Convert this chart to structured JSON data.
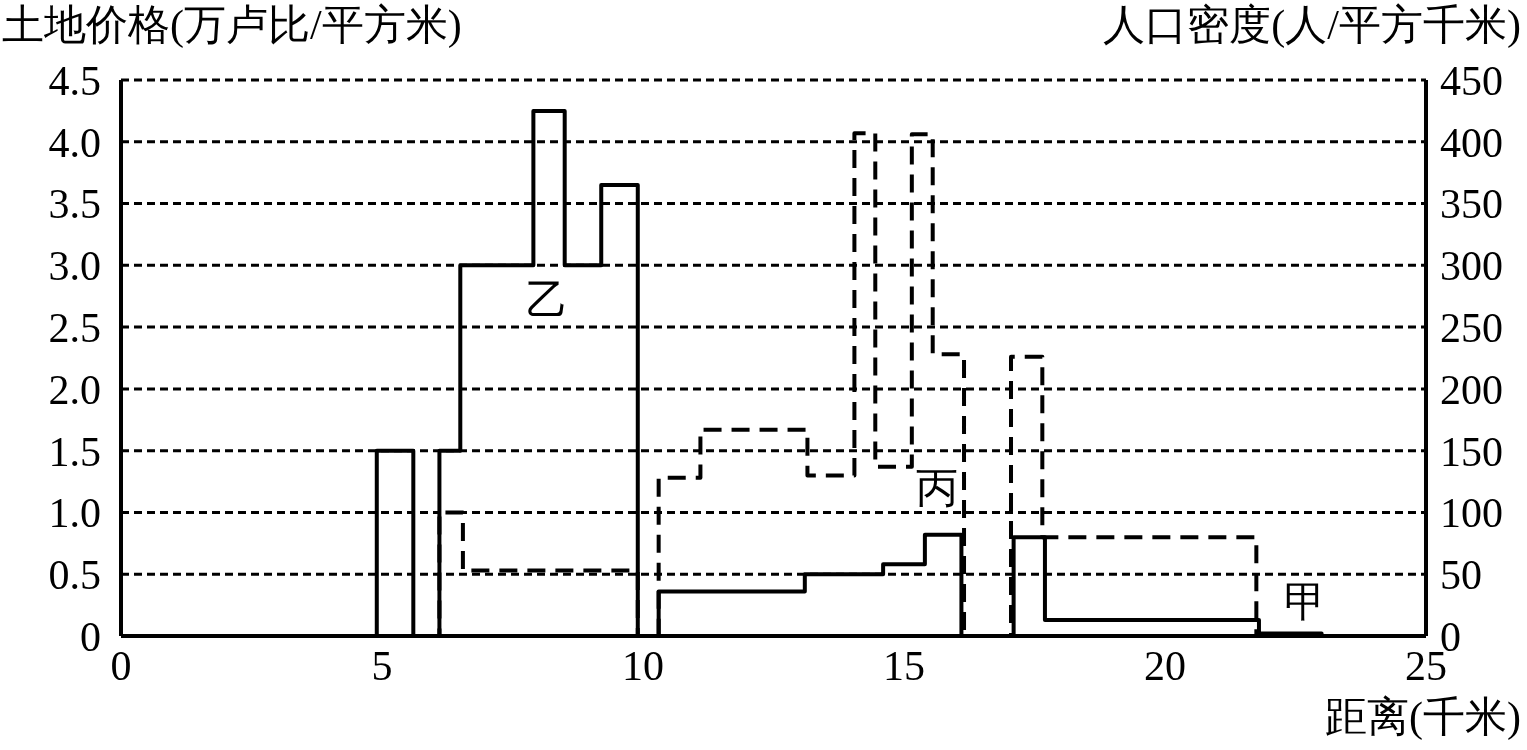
{
  "chart_data": {
    "type": "step",
    "xlabel": "距离(千米)",
    "ylabel": "土地价格(万卢比/平方米)",
    "y2label": "人口密度(人/平方千米)",
    "xlim": [
      0,
      25
    ],
    "xticks": [
      0,
      5,
      10,
      15,
      20,
      25
    ],
    "ylim": [
      0,
      4.5
    ],
    "yticks": [
      0,
      0.5,
      {
        "value": 1,
        "label": "1.0"
      },
      1.5,
      {
        "value": 2,
        "label": "2.0"
      },
      2.5,
      {
        "value": 3,
        "label": "3.0"
      },
      3.5,
      {
        "value": 4,
        "label": "4.0"
      },
      4.5
    ],
    "y2lim": [
      0,
      450
    ],
    "y2ticks": [
      0,
      50,
      100,
      150,
      200,
      250,
      300,
      350,
      400,
      450
    ],
    "grid": "y",
    "series": [
      {
        "color": "#000000",
        "line_style": "solid",
        "x": [
          0,
          4.9,
          5.6,
          6.1,
          6.5,
          7.9,
          8.5,
          9.2,
          9.9,
          10.3,
          13.1,
          14.6,
          15.4,
          16.1,
          17.1,
          17.7,
          21.8,
          23.0
        ],
        "values": [
          0,
          1.5,
          0,
          1.5,
          3.0,
          4.25,
          3.0,
          3.65,
          0,
          0.36,
          0.5,
          0.58,
          0.82,
          0,
          0.8,
          0.13,
          0.02,
          0
        ]
      },
      {
        "color": "#000000",
        "line_style": "dashed",
        "axis": "y2",
        "x": [
          0,
          6.1,
          6.55,
          9.9,
          10.3,
          11.1,
          13.15,
          14.05,
          14.45,
          15.15,
          15.55,
          16.15,
          17.05,
          17.65,
          21.75
        ],
        "values": [
          0,
          100,
          53,
          0,
          128,
          167,
          130,
          407,
          137,
          406,
          228,
          0,
          226,
          80,
          0
        ]
      }
    ],
    "annotations": [
      "乙",
      "丙",
      "甲"
    ]
  }
}
